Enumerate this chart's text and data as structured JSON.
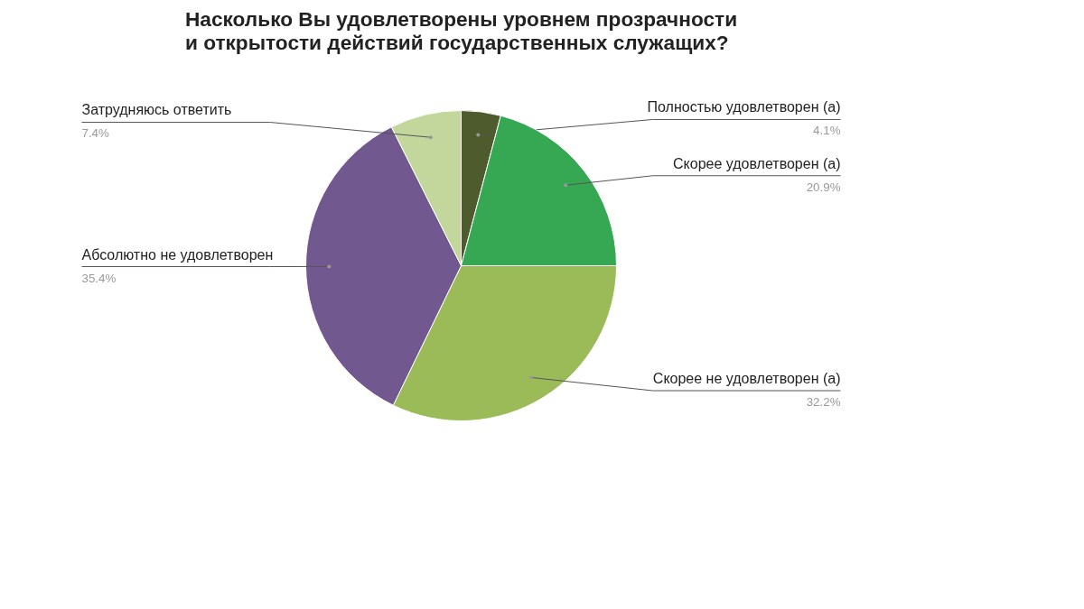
{
  "chart_data": {
    "type": "pie",
    "title": "Насколько Вы удовлетворены уровнем прозрачности и открытости действий государственных служащих?",
    "categories": [
      "Полностью удовлетворен (а)",
      "Скорее удовлетворен (а)",
      "Скорее не удовлетворен (а)",
      "Абсолютно не удовлетворен",
      "Затрудняюсь ответить"
    ],
    "values": [
      4.1,
      20.9,
      32.2,
      35.4,
      7.4
    ],
    "colors": [
      "#4e5b2c",
      "#36a853",
      "#9bbb59",
      "#71588f",
      "#c3d69b"
    ],
    "value_labels": [
      "4.1%",
      "20.9%",
      "32.2%",
      "35.4%",
      "7.4%"
    ]
  }
}
